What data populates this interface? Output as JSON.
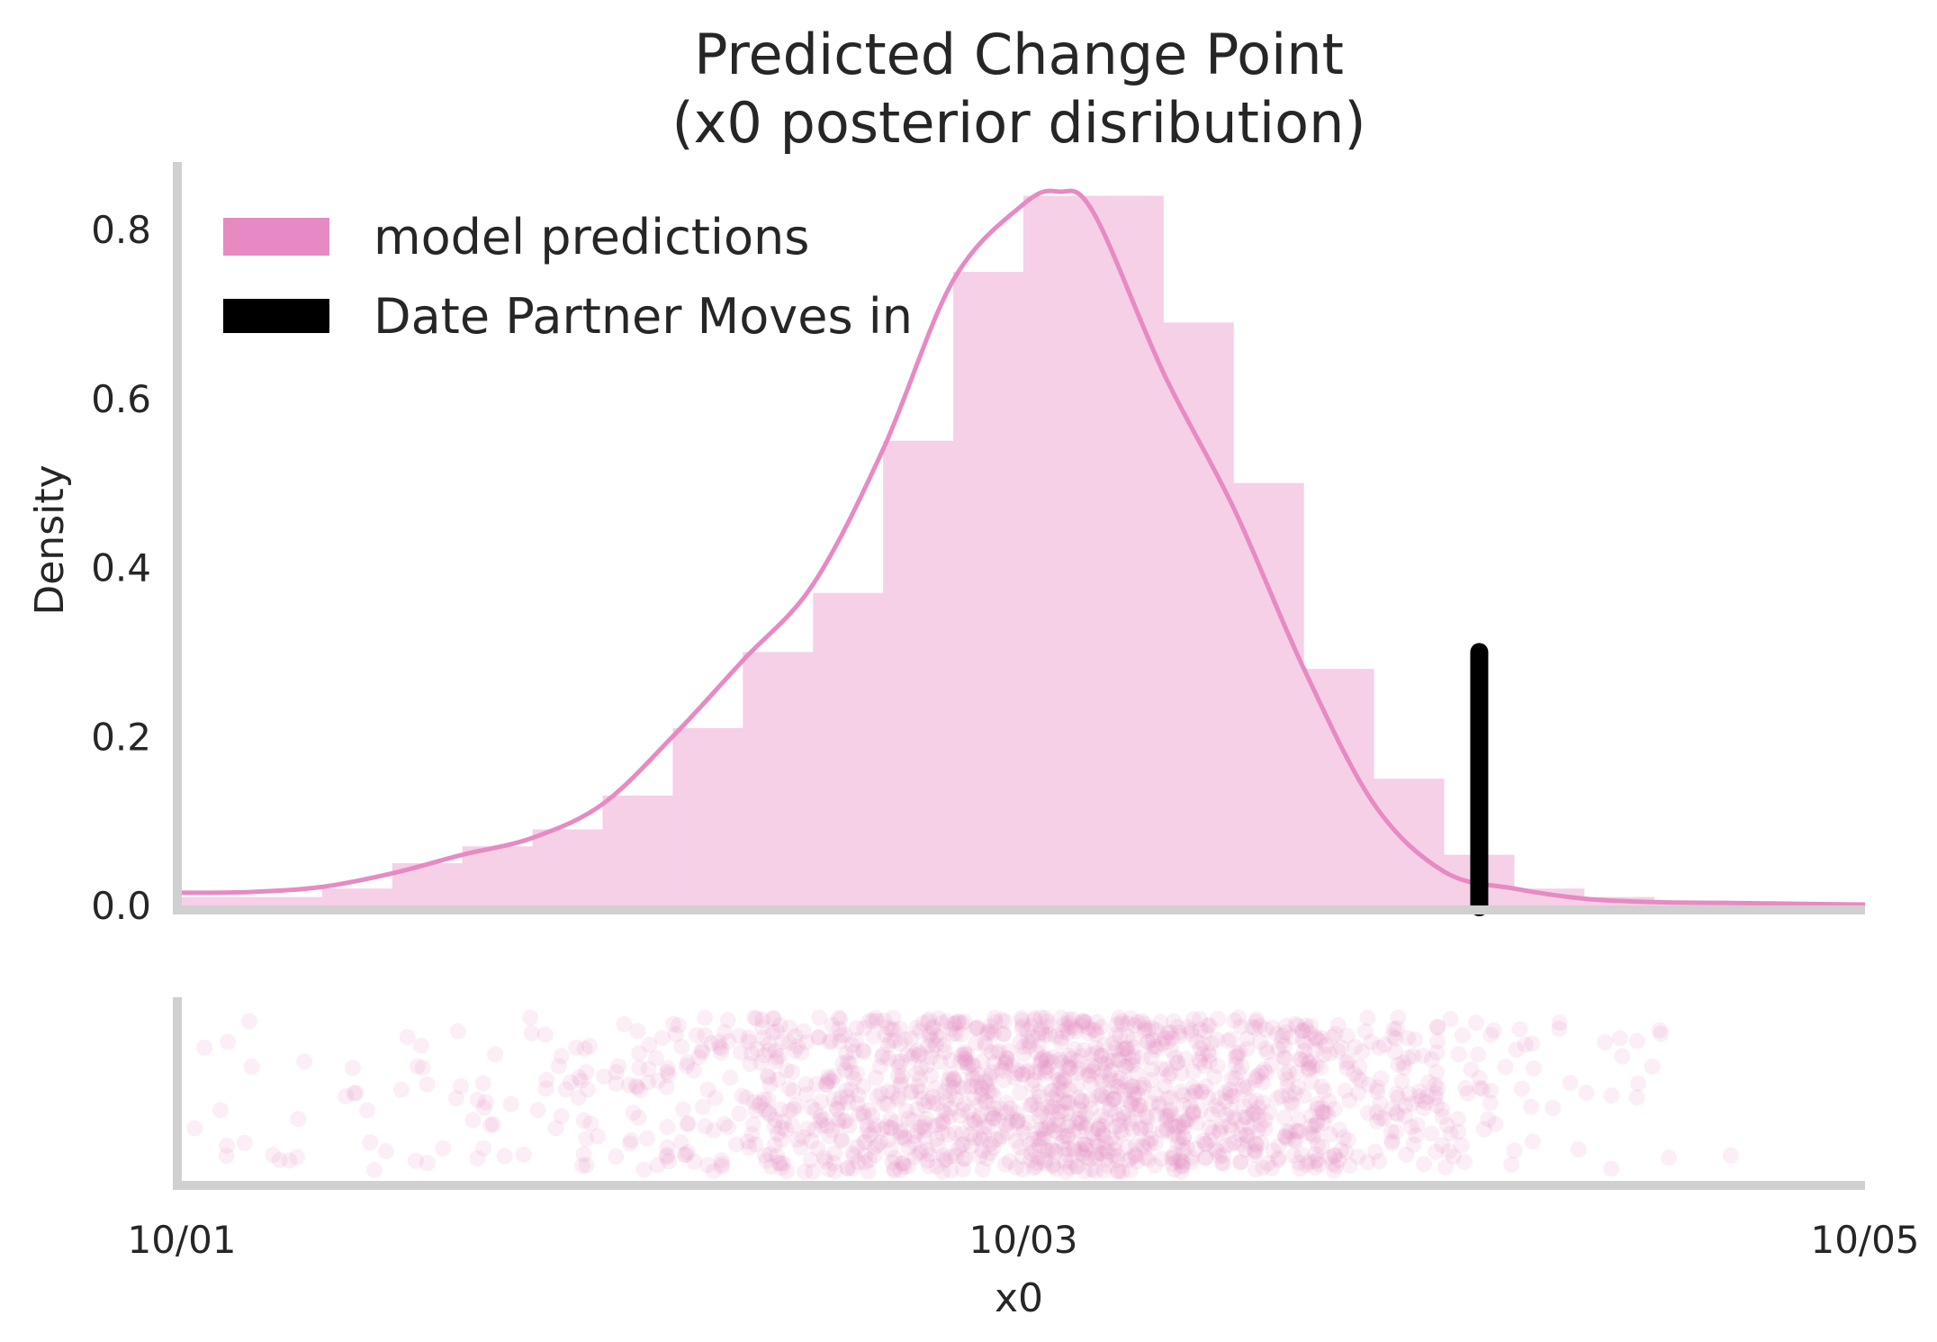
{
  "chart_data": {
    "type": "bar",
    "title": [
      "Predicted Change Point",
      "(x0 posterior disribution)"
    ],
    "xlabel": "x0",
    "ylabel": "Density",
    "x_unit": "date",
    "xlim": [
      "10/01",
      "10/05"
    ],
    "xticks": [
      "10/01",
      "10/03",
      "10/05"
    ],
    "ylim": [
      0,
      0.88
    ],
    "yticks": [
      "0.0",
      "0.2",
      "0.4",
      "0.6",
      "0.8"
    ],
    "grid": false,
    "legend": {
      "position": "top-left",
      "entries": [
        {
          "label": "model predictions",
          "color": "#e78ac3"
        },
        {
          "label": "Date Partner Moves in",
          "color": "#000000"
        }
      ]
    },
    "histogram": {
      "name": "model predictions",
      "color": "#e78ac3",
      "bin_edges": [
        "10/01 00:00",
        "10/01 04:00",
        "10/01 08:00",
        "10/01 12:00",
        "10/01 16:00",
        "10/01 20:00",
        "10/02 00:00",
        "10/02 04:00",
        "10/02 08:00",
        "10/02 12:00",
        "10/02 16:00",
        "10/02 20:00",
        "10/03 00:00",
        "10/03 04:00",
        "10/03 08:00",
        "10/03 12:00",
        "10/03 16:00",
        "10/03 20:00",
        "10/04 00:00",
        "10/04 04:00",
        "10/04 08:00",
        "10/04 12:00",
        "10/04 16:00",
        "10/04 20:00",
        "10/05 00:00"
      ],
      "density": [
        0.01,
        0.01,
        0.02,
        0.05,
        0.07,
        0.09,
        0.13,
        0.21,
        0.3,
        0.37,
        0.55,
        0.75,
        0.84,
        0.84,
        0.69,
        0.5,
        0.28,
        0.15,
        0.06,
        0.02,
        0.01,
        0.005,
        0.003,
        0.002
      ]
    },
    "kde": {
      "name": "model predictions",
      "color": "#e78ac3",
      "x": [
        "10/01 00:00",
        "10/01 04:00",
        "10/01 08:00",
        "10/01 12:00",
        "10/01 16:00",
        "10/01 20:00",
        "10/02 00:00",
        "10/02 04:00",
        "10/02 08:00",
        "10/02 12:00",
        "10/02 16:00",
        "10/02 20:00",
        "10/03 00:00",
        "10/03 02:00",
        "10/03 04:00",
        "10/03 08:00",
        "10/03 12:00",
        "10/03 16:00",
        "10/03 20:00",
        "10/04 00:00",
        "10/04 04:00",
        "10/04 08:00",
        "10/04 12:00",
        "10/04 16:00",
        "10/04 20:00",
        "10/05 00:00"
      ],
      "y": [
        0.015,
        0.016,
        0.022,
        0.038,
        0.06,
        0.08,
        0.12,
        0.2,
        0.29,
        0.38,
        0.54,
        0.74,
        0.83,
        0.845,
        0.82,
        0.63,
        0.47,
        0.28,
        0.12,
        0.04,
        0.02,
        0.008,
        0.004,
        0.003,
        0.002,
        0.001
      ]
    },
    "change_point": {
      "label": "Date Partner Moves in",
      "date": "10/04 02:00",
      "density_height": 0.3,
      "color": "#000000"
    },
    "rug_strip": {
      "type": "scatter",
      "description_points": "jittered posterior samples of x0",
      "color": "#e78ac3",
      "opacity": 0.15
    }
  }
}
